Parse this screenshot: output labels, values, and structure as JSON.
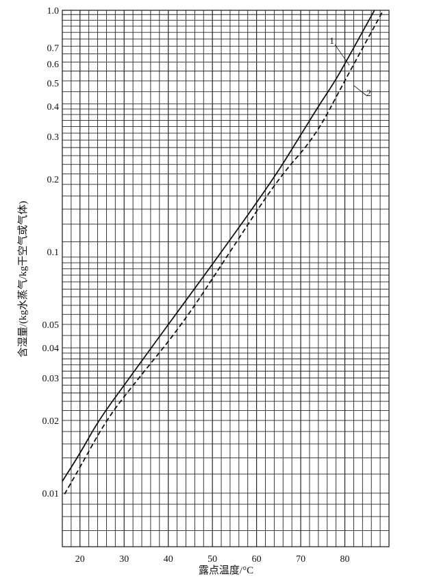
{
  "chart_data": {
    "type": "line",
    "title": "",
    "xlabel": "露点温度/°C",
    "ylabel": "含湿量/(kg水蒸气/kg干空气或气体)",
    "xlim": [
      16,
      90
    ],
    "ylim": [
      0.006,
      1.0
    ],
    "yscale": "log",
    "grid": true,
    "x_ticks": [
      "20",
      "30",
      "40",
      "50",
      "60",
      "70",
      "80"
    ],
    "x_tick_values": [
      20,
      30,
      40,
      50,
      60,
      70,
      80
    ],
    "y_ticks": [
      "1.0",
      "0.7",
      "0.6",
      "0.5",
      "0.4",
      "0.3",
      "0.2",
      "0.1",
      "0.05",
      "0.04",
      "0.03",
      "0.02",
      "0.01"
    ],
    "y_tick_values": [
      1.0,
      0.7,
      0.6,
      0.5,
      0.4,
      0.3,
      0.2,
      0.1,
      0.05,
      0.04,
      0.03,
      0.02,
      0.01
    ],
    "series": [
      {
        "name": "1",
        "style": "solid",
        "x": [
          16,
          20,
          24.2,
          30,
          40,
          52.1,
          63.8,
          69.8,
          74,
          77.5,
          80,
          86.7
        ],
        "y": [
          0.0112,
          0.0146,
          0.02,
          0.028,
          0.05,
          0.1,
          0.2,
          0.3,
          0.4,
          0.5,
          0.6,
          1.0
        ]
      },
      {
        "name": "2",
        "style": "dashed",
        "x": [
          16.5,
          20,
          25.9,
          32,
          43.2,
          54,
          64.8,
          73.3,
          79.7,
          88.7
        ],
        "y": [
          0.0099,
          0.0128,
          0.02,
          0.028,
          0.05,
          0.1,
          0.2,
          0.3,
          0.5,
          1.0
        ]
      }
    ],
    "annotations": [
      {
        "text": "1",
        "target_series": "1",
        "at_x": 81.5
      },
      {
        "text": "2",
        "target_series": "2",
        "at_x": 81.5
      }
    ]
  }
}
